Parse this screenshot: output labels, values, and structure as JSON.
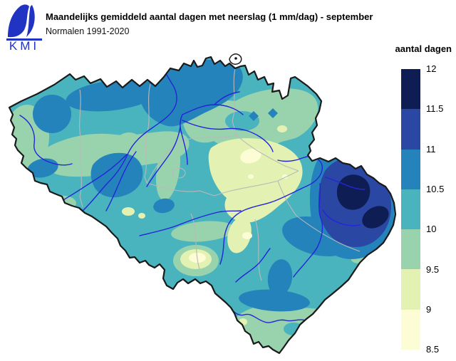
{
  "header": {
    "title": "Maandelijks gemiddeld aantal dagen met neerslag (1 mm/dag) - september",
    "subtitle": "Normalen 1991-2020"
  },
  "logo": {
    "text": "KMI"
  },
  "legend": {
    "title": "aantal dagen",
    "tick_labels": [
      "12",
      "11.5",
      "11",
      "10.5",
      "10",
      "9.5",
      "9",
      "8.5"
    ],
    "bands": [
      {
        "from": 11.5,
        "to": 12,
        "color": "#0e1e55"
      },
      {
        "from": 11,
        "to": 11.5,
        "color": "#2a47a4"
      },
      {
        "from": 10.5,
        "to": 11,
        "color": "#2583bb"
      },
      {
        "from": 10,
        "to": 10.5,
        "color": "#49b4bd"
      },
      {
        "from": 9.5,
        "to": 10,
        "color": "#99d3ae"
      },
      {
        "from": 9,
        "to": 9.5,
        "color": "#e3f2b2"
      },
      {
        "from": 8.5,
        "to": 9,
        "color": "#fdfdd5"
      }
    ]
  },
  "map": {
    "region": "Belgium",
    "value_unit": "dagen",
    "scale_min": 8.5,
    "scale_max": 12,
    "colors": {
      "outline": "#1a1a1a",
      "province": "#b9b9b9",
      "river": "#2424d9",
      "enclave": "#ffffff",
      "logo": "#2133c2"
    }
  }
}
